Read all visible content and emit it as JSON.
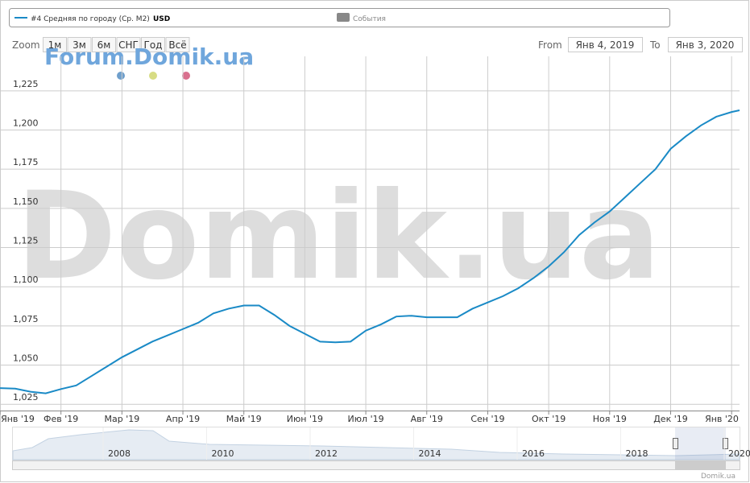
{
  "chart_data": {
    "type": "line",
    "series": [
      {
        "name": "#4 Средняя по городу (Ср. М2)",
        "unit": "USD",
        "color": "#1a8ac6",
        "x": [
          0,
          0.25,
          0.5,
          0.75,
          1,
          1.25,
          1.5,
          1.75,
          2,
          2.25,
          2.5,
          2.75,
          3,
          3.25,
          3.5,
          3.75,
          4,
          4.25,
          4.5,
          4.75,
          5,
          5.25,
          5.5,
          5.75,
          6,
          6.25,
          6.5,
          6.75,
          7,
          7.25,
          7.5,
          7.75,
          8,
          8.25,
          8.5,
          8.75,
          9,
          9.25,
          9.5,
          9.75,
          10,
          10.25,
          10.5,
          10.75,
          11,
          11.25,
          11.5,
          11.75,
          12,
          12.13
        ],
        "values": [
          1035.3,
          1035,
          1033,
          1032,
          1034.7,
          1037,
          1043,
          1049,
          1055,
          1060,
          1065,
          1069,
          1073,
          1077,
          1083,
          1086,
          1088,
          1088,
          1082,
          1075,
          1070,
          1065,
          1064.5,
          1065,
          1072,
          1076,
          1081,
          1081.5,
          1080.5,
          1080.5,
          1080.5,
          1086,
          1090,
          1094,
          1099,
          1105.5,
          1113,
          1122,
          1133,
          1141,
          1148,
          1157,
          1166,
          1175,
          1188,
          1196,
          1203,
          1208.5,
          1211.5,
          1212.6
        ]
      }
    ],
    "xlim": [
      0,
      12.13
    ],
    "xticks": [
      {
        "value": 0,
        "label": "Янв '19"
      },
      {
        "value": 1,
        "label": "Фев '19"
      },
      {
        "value": 2,
        "label": "Мар '19"
      },
      {
        "value": 3,
        "label": "Апр '19"
      },
      {
        "value": 4,
        "label": "Май '19"
      },
      {
        "value": 5,
        "label": "Июн '19"
      },
      {
        "value": 6,
        "label": "Июл '19"
      },
      {
        "value": 7,
        "label": "Авг '19"
      },
      {
        "value": 8,
        "label": "Сен '19"
      },
      {
        "value": 9,
        "label": "Окт '19"
      },
      {
        "value": 10,
        "label": "Ноя '19"
      },
      {
        "value": 11,
        "label": "Дек '19"
      },
      {
        "value": 12,
        "label": "Янв '20"
      }
    ],
    "ylim": [
      1021,
      1247
    ],
    "yticks": [
      {
        "value": 1025,
        "label": "1,025"
      },
      {
        "value": 1050,
        "label": "1,050"
      },
      {
        "value": 1075,
        "label": "1,075"
      },
      {
        "value": 1100,
        "label": "1,100"
      },
      {
        "value": 1125,
        "label": "1,125"
      },
      {
        "value": 1150,
        "label": "1,150"
      },
      {
        "value": 1175,
        "label": "1,175"
      },
      {
        "value": 1200,
        "label": "1,200"
      },
      {
        "value": 1225,
        "label": "1,225"
      }
    ],
    "grid": true
  },
  "events_label": "События",
  "zoom": {
    "label": "Zoom",
    "buttons": [
      "1м",
      "3м",
      "6м",
      "СНГ",
      "Год",
      "Всё"
    ]
  },
  "range": {
    "from_label": "From",
    "from": "Янв 4, 2019",
    "to_label": "To",
    "to": "Янв 3, 2020"
  },
  "watermark": "Domik.ua",
  "forum": "Forum.Domik.ua",
  "navigator": {
    "years": [
      "2008",
      "2010",
      "2012",
      "2014",
      "2016",
      "2018",
      "2020"
    ]
  },
  "credit": "Domik.ua"
}
